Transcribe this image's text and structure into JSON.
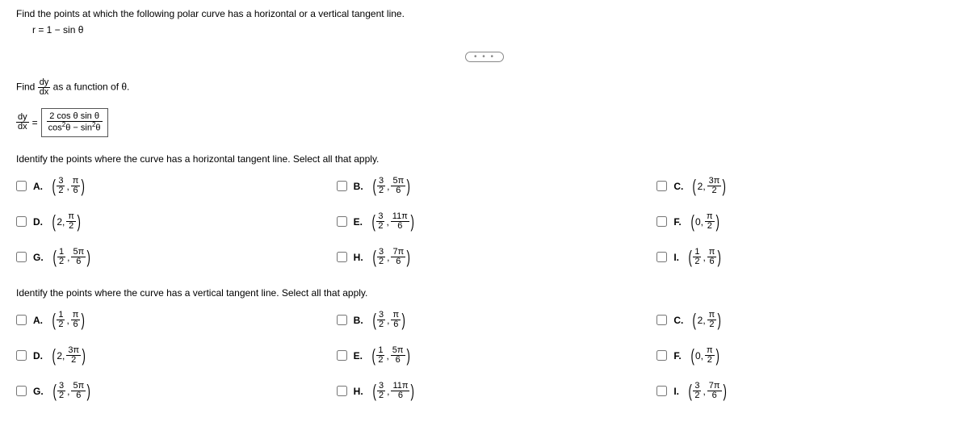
{
  "header": {
    "prompt": "Find the points at which the following polar curve has a horizontal or a vertical tangent line.",
    "equation": "r = 1 − sin θ"
  },
  "part_deriv": {
    "intro_prefix": "Find ",
    "intro_suffix": " as a function of θ.",
    "lhs_num": "dy",
    "lhs_den": "dx",
    "rhs_num": "2 cos θ sin θ",
    "rhs_den_left": "cos",
    "rhs_den_mid": "θ − sin",
    "rhs_den_right": "θ",
    "sup": "2"
  },
  "horizontal": {
    "label": "Identify the points where the curve has a horizontal tangent line. Select all that apply.",
    "choices": [
      {
        "letter": "A.",
        "r_num": "3",
        "r_den": "2",
        "t_num": "π",
        "t_den": "6"
      },
      {
        "letter": "B.",
        "r_num": "3",
        "r_den": "2",
        "t_num": "5π",
        "t_den": "6"
      },
      {
        "letter": "C.",
        "r_whole": "2",
        "t_num": "3π",
        "t_den": "2"
      },
      {
        "letter": "D.",
        "r_whole": "2",
        "t_num": "π",
        "t_den": "2"
      },
      {
        "letter": "E.",
        "r_num": "3",
        "r_den": "2",
        "t_num": "11π",
        "t_den": "6"
      },
      {
        "letter": "F.",
        "r_whole": "0",
        "t_num": "π",
        "t_den": "2"
      },
      {
        "letter": "G.",
        "r_num": "1",
        "r_den": "2",
        "t_num": "5π",
        "t_den": "6"
      },
      {
        "letter": "H.",
        "r_num": "3",
        "r_den": "2",
        "t_num": "7π",
        "t_den": "6"
      },
      {
        "letter": "I.",
        "r_num": "1",
        "r_den": "2",
        "t_num": "π",
        "t_den": "6"
      }
    ]
  },
  "vertical": {
    "label": "Identify the points where the curve has a vertical tangent line. Select all that apply.",
    "choices": [
      {
        "letter": "A.",
        "r_num": "1",
        "r_den": "2",
        "t_num": "π",
        "t_den": "6"
      },
      {
        "letter": "B.",
        "r_num": "3",
        "r_den": "2",
        "t_num": "π",
        "t_den": "6"
      },
      {
        "letter": "C.",
        "r_whole": "2",
        "t_num": "π",
        "t_den": "2"
      },
      {
        "letter": "D.",
        "r_whole": "2",
        "t_num": "3π",
        "t_den": "2"
      },
      {
        "letter": "E.",
        "r_num": "1",
        "r_den": "2",
        "t_num": "5π",
        "t_den": "6"
      },
      {
        "letter": "F.",
        "r_whole": "0",
        "t_num": "π",
        "t_den": "2"
      },
      {
        "letter": "G.",
        "r_num": "3",
        "r_den": "2",
        "t_num": "5π",
        "t_den": "6"
      },
      {
        "letter": "H.",
        "r_num": "3",
        "r_den": "2",
        "t_num": "11π",
        "t_den": "6"
      },
      {
        "letter": "I.",
        "r_num": "3",
        "r_den": "2",
        "t_num": "7π",
        "t_den": "6"
      }
    ]
  },
  "dots": "• • •"
}
